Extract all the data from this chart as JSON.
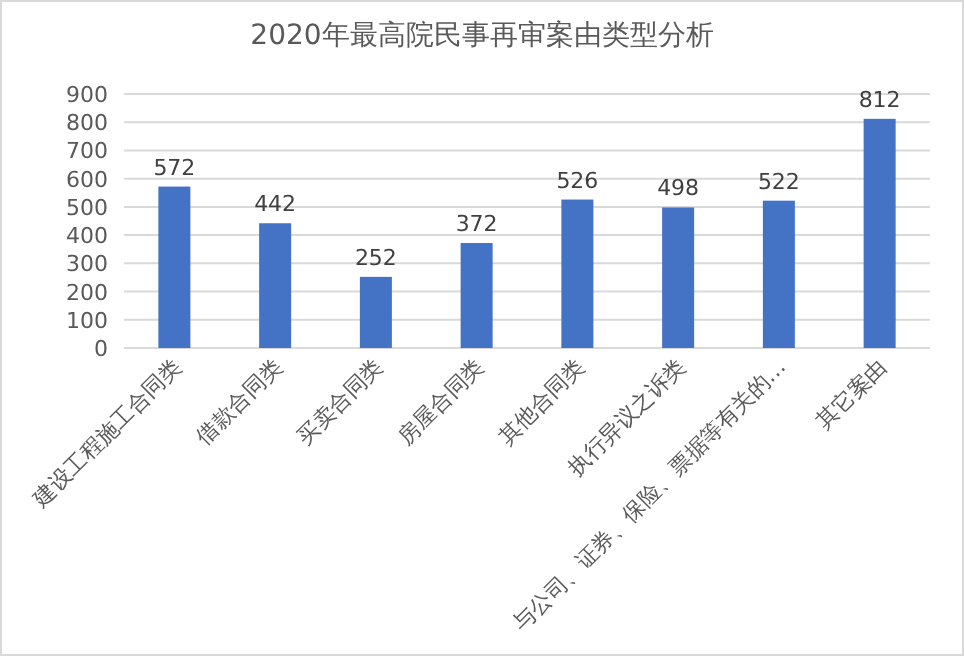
{
  "chart_data": {
    "type": "bar",
    "title": "2020年最高院民事再审案由类型分析",
    "categories": [
      "建设工程施工合同类",
      "借款合同类",
      "买卖合同类",
      "房屋合同类",
      "其他合同类",
      "执行异议之诉类",
      "与公司、证券、保险、票据等有关的…",
      "其它案由"
    ],
    "values": [
      572,
      442,
      252,
      372,
      526,
      498,
      522,
      812
    ],
    "color": "#4472c4",
    "data_labels": true,
    "grid": "y",
    "ylim": [
      0,
      900
    ],
    "yticks": [
      0,
      100,
      200,
      300,
      400,
      500,
      600,
      700,
      800,
      900
    ]
  }
}
